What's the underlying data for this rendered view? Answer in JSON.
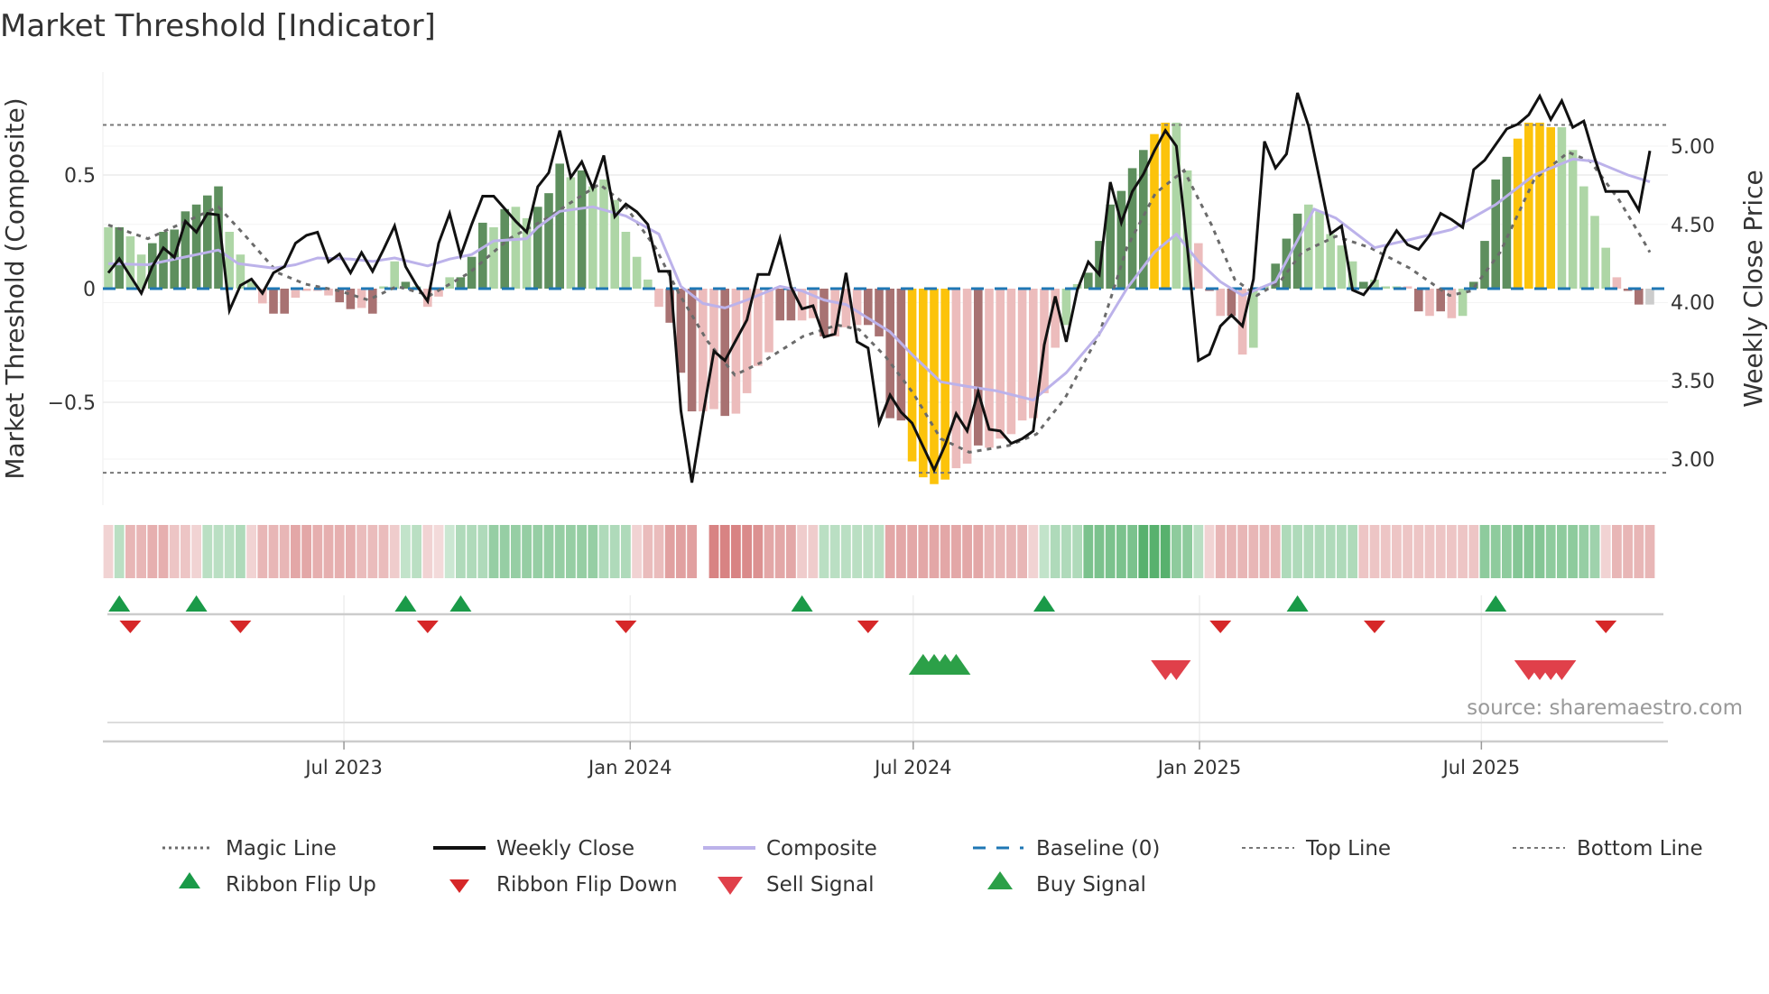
{
  "chart_data": {
    "type": "bar",
    "title": "Market Threshold [Indicator]",
    "ylabel": "Market Threshold (Composite)",
    "y2label": "Weekly Close Price",
    "source": "source: sharemaestro.com",
    "ylim": [
      -0.93,
      0.95
    ],
    "y2lim": [
      2.75,
      5.45
    ],
    "y_ticks": [
      "0.5",
      "0",
      "−0.5"
    ],
    "y_tick_values": [
      0.5,
      0,
      -0.5
    ],
    "y2_ticks": [
      "5.00",
      "4.50",
      "4.00",
      "3.50",
      "3.00"
    ],
    "y2_tick_values": [
      5.0,
      4.5,
      4.0,
      3.5,
      3.0
    ],
    "x_ticks": [
      {
        "label": "Jul 2023",
        "week": 21.4
      },
      {
        "label": "Jan 2024",
        "week": 47.4
      },
      {
        "label": "Jul 2024",
        "week": 73.1
      },
      {
        "label": "Jan 2025",
        "week": 99.1
      },
      {
        "label": "Jul 2025",
        "week": 124.7
      }
    ],
    "weeks": 141,
    "top_line": 0.72,
    "bottom_line": -0.81,
    "composite_bars": [
      0.27,
      0.27,
      0.23,
      0.15,
      0.2,
      0.25,
      0.26,
      0.34,
      0.37,
      0.41,
      0.45,
      0.25,
      0.15,
      0.03,
      -0.065,
      -0.11,
      -0.11,
      -0.04,
      -0.01,
      -0.01,
      -0.03,
      -0.06,
      -0.09,
      -0.085,
      -0.11,
      0.01,
      0.12,
      0.03,
      0.01,
      -0.08,
      -0.035,
      0.05,
      0.05,
      0.14,
      0.29,
      0.27,
      0.35,
      0.36,
      0.31,
      0.36,
      0.42,
      0.55,
      0.49,
      0.52,
      0.45,
      0.48,
      0.39,
      0.25,
      0.14,
      0.04,
      -0.08,
      -0.15,
      -0.37,
      -0.54,
      -0.54,
      -0.53,
      -0.56,
      -0.55,
      -0.46,
      -0.34,
      -0.28,
      -0.14,
      -0.14,
      -0.14,
      -0.13,
      -0.21,
      -0.21,
      -0.17,
      -0.16,
      -0.16,
      -0.21,
      -0.57,
      -0.58,
      -0.76,
      -0.83,
      -0.86,
      -0.84,
      -0.79,
      -0.77,
      -0.69,
      -0.7,
      -0.66,
      -0.64,
      -0.58,
      -0.57,
      -0.46,
      -0.26,
      -0.16,
      0.02,
      0.07,
      0.21,
      0.37,
      0.43,
      0.53,
      0.61,
      0.68,
      0.73,
      0.73,
      0.52,
      0.2,
      -0.01,
      -0.12,
      -0.12,
      -0.29,
      -0.26,
      0.01,
      0.11,
      0.22,
      0.33,
      0.37,
      0.34,
      0.24,
      0.19,
      0.12,
      0.03,
      0.04,
      0.01,
      0.01,
      0.01,
      -0.1,
      -0.12,
      -0.1,
      -0.13,
      -0.12,
      0.03,
      0.21,
      0.48,
      0.58,
      0.66,
      0.73,
      0.73,
      0.71,
      0.71,
      0.61,
      0.45,
      0.32,
      0.18,
      0.05,
      -0.01,
      -0.07,
      -0.07
    ],
    "bar_styles": "gGggGGGGGGGgggrRRrrrrRRrRggGgrrgGGGgGggGGGgGggggggrRRRrrRrrrrRRrrRrrrRRRRYYYYrrRrrrrrrrggGGGGGGYYggrRrRrggGGGgggggGgggrRrRrgGGGGYYYYgggggrRR",
    "bar_colors": {
      "G": "#5e8f5e",
      "g": "#aed6a6",
      "R": "#a87272",
      "r": "#ecbcbc",
      "Y": "#fcc30b"
    },
    "weekly_close": [
      4.19,
      4.28,
      4.17,
      4.06,
      4.23,
      4.35,
      4.29,
      4.52,
      4.45,
      4.57,
      4.56,
      3.95,
      4.11,
      4.15,
      4.06,
      4.19,
      4.23,
      4.38,
      4.43,
      4.45,
      4.26,
      4.31,
      4.19,
      4.32,
      4.2,
      4.34,
      4.49,
      4.23,
      4.11,
      4.01,
      4.38,
      4.57,
      4.3,
      4.5,
      4.68,
      4.68,
      4.6,
      4.52,
      4.45,
      4.74,
      4.83,
      5.1,
      4.8,
      4.9,
      4.73,
      4.94,
      4.55,
      4.63,
      4.58,
      4.5,
      4.2,
      4.2,
      3.31,
      2.85,
      3.28,
      3.69,
      3.63,
      3.76,
      3.89,
      4.18,
      4.18,
      4.41,
      4.1,
      3.96,
      3.98,
      3.78,
      3.8,
      4.19,
      3.75,
      3.71,
      3.23,
      3.41,
      3.3,
      3.23,
      3.08,
      2.93,
      3.09,
      3.29,
      3.18,
      3.43,
      3.19,
      3.18,
      3.1,
      3.13,
      3.18,
      3.73,
      4.04,
      3.75,
      4.08,
      4.26,
      4.18,
      4.77,
      4.51,
      4.71,
      4.82,
      4.97,
      5.1,
      5.0,
      4.35,
      3.63,
      3.67,
      3.85,
      3.92,
      3.85,
      4.15,
      5.03,
      4.86,
      4.95,
      5.34,
      5.13,
      4.79,
      4.44,
      4.49,
      4.08,
      4.05,
      4.14,
      4.35,
      4.46,
      4.37,
      4.34,
      4.43,
      4.57,
      4.53,
      4.48,
      4.85,
      4.91,
      5.01,
      5.11,
      5.14,
      5.2,
      5.32,
      5.17,
      5.29,
      5.12,
      5.16,
      4.92,
      4.71,
      4.71,
      4.71,
      4.59,
      4.97
    ],
    "composite_line": [
      [
        0,
        0.11
      ],
      [
        3.6,
        0.105
      ],
      [
        10,
        0.17
      ],
      [
        11.8,
        0.11
      ],
      [
        15,
        0.09
      ],
      [
        17,
        0.105
      ],
      [
        19,
        0.135
      ],
      [
        22,
        0.13
      ],
      [
        24,
        0.12
      ],
      [
        26,
        0.135
      ],
      [
        29,
        0.1
      ],
      [
        31,
        0.13
      ],
      [
        33,
        0.15
      ],
      [
        35,
        0.21
      ],
      [
        38,
        0.22
      ],
      [
        39,
        0.27
      ],
      [
        41,
        0.34
      ],
      [
        44,
        0.36
      ],
      [
        47,
        0.32
      ],
      [
        50,
        0.24
      ],
      [
        52,
        0.01
      ],
      [
        54,
        -0.065
      ],
      [
        56,
        -0.085
      ],
      [
        58,
        -0.05
      ],
      [
        61,
        0.01
      ],
      [
        63,
        -0.01
      ],
      [
        65,
        -0.05
      ],
      [
        67,
        -0.07
      ],
      [
        71,
        -0.19
      ],
      [
        73,
        -0.29
      ],
      [
        75.6,
        -0.41
      ],
      [
        78,
        -0.43
      ],
      [
        80.7,
        -0.45
      ],
      [
        84,
        -0.49
      ],
      [
        87,
        -0.37
      ],
      [
        90,
        -0.2
      ],
      [
        92.5,
        0.0
      ],
      [
        95,
        0.16
      ],
      [
        97,
        0.24
      ],
      [
        99,
        0.12
      ],
      [
        101,
        0.03
      ],
      [
        103,
        -0.03
      ],
      [
        106,
        0.03
      ],
      [
        109.5,
        0.35
      ],
      [
        111.5,
        0.31
      ],
      [
        115,
        0.18
      ],
      [
        117.7,
        0.21
      ],
      [
        122,
        0.26
      ],
      [
        126,
        0.37
      ],
      [
        129.5,
        0.5
      ],
      [
        133,
        0.57
      ],
      [
        135,
        0.56
      ],
      [
        138,
        0.5
      ],
      [
        140,
        0.47
      ]
    ],
    "magic_line": [
      [
        0,
        0.28
      ],
      [
        3.6,
        0.22
      ],
      [
        10,
        0.36
      ],
      [
        12.3,
        0.24
      ],
      [
        15.4,
        0.07
      ],
      [
        17.9,
        0.02
      ],
      [
        21,
        -0.01
      ],
      [
        23.6,
        -0.05
      ],
      [
        26.2,
        0.01
      ],
      [
        29.2,
        -0.03
      ],
      [
        32.8,
        0.07
      ],
      [
        36.4,
        0.22
      ],
      [
        39.5,
        0.3
      ],
      [
        44.6,
        0.46
      ],
      [
        46.7,
        0.38
      ],
      [
        49.7,
        0.18
      ],
      [
        51.8,
        -0.02
      ],
      [
        54.4,
        -0.23
      ],
      [
        56.9,
        -0.38
      ],
      [
        59.5,
        -0.32
      ],
      [
        63.1,
        -0.21
      ],
      [
        66.2,
        -0.16
      ],
      [
        68.2,
        -0.18
      ],
      [
        70.6,
        -0.3
      ],
      [
        73.1,
        -0.46
      ],
      [
        75.6,
        -0.66
      ],
      [
        78.2,
        -0.72
      ],
      [
        81.8,
        -0.69
      ],
      [
        84.3,
        -0.64
      ],
      [
        86.9,
        -0.48
      ],
      [
        90,
        -0.2
      ],
      [
        92.5,
        0.18
      ],
      [
        95.1,
        0.42
      ],
      [
        97.7,
        0.52
      ],
      [
        100.2,
        0.28
      ],
      [
        102.3,
        0.04
      ],
      [
        104.3,
        -0.03
      ],
      [
        106.4,
        0.03
      ],
      [
        108.4,
        0.16
      ],
      [
        111.5,
        0.23
      ],
      [
        114.6,
        0.18
      ],
      [
        118.2,
        0.09
      ],
      [
        121.8,
        -0.03
      ],
      [
        123.8,
        -0.01
      ],
      [
        126.4,
        0.16
      ],
      [
        129.5,
        0.48
      ],
      [
        132.6,
        0.6
      ],
      [
        134.6,
        0.56
      ],
      [
        137.2,
        0.39
      ],
      [
        139.3,
        0.22
      ],
      [
        140,
        0.16
      ]
    ],
    "ribbon": [
      -0.15,
      0.25,
      -0.35,
      -0.35,
      -0.4,
      -0.4,
      -0.25,
      -0.25,
      -0.15,
      0.25,
      0.25,
      0.25,
      0.3,
      -0.15,
      -0.35,
      -0.35,
      -0.35,
      -0.45,
      -0.45,
      -0.4,
      -0.4,
      -0.4,
      -0.4,
      -0.3,
      -0.3,
      -0.3,
      -0.2,
      0.2,
      0.25,
      -0.15,
      -0.1,
      0.15,
      0.3,
      0.3,
      0.3,
      0.45,
      0.45,
      0.45,
      0.45,
      0.45,
      0.45,
      0.45,
      0.45,
      0.45,
      0.45,
      0.3,
      0.3,
      0.3,
      -0.15,
      -0.3,
      -0.3,
      -0.5,
      -0.5,
      -0.5,
      null,
      -0.7,
      -0.7,
      -0.7,
      -0.65,
      -0.6,
      -0.45,
      -0.45,
      -0.45,
      -0.2,
      -0.2,
      0.25,
      0.25,
      0.25,
      0.25,
      0.25,
      0.25,
      -0.45,
      -0.45,
      -0.45,
      -0.45,
      -0.45,
      -0.45,
      -0.45,
      -0.45,
      -0.45,
      -0.35,
      -0.35,
      -0.35,
      -0.35,
      -0.15,
      0.2,
      0.3,
      0.3,
      0.3,
      0.6,
      0.6,
      0.6,
      0.6,
      0.6,
      0.8,
      0.8,
      0.8,
      0.5,
      0.5,
      0.25,
      -0.15,
      -0.35,
      -0.35,
      -0.35,
      -0.35,
      -0.35,
      -0.35,
      0.3,
      0.3,
      0.3,
      0.3,
      0.3,
      0.3,
      0.3,
      -0.25,
      -0.25,
      -0.25,
      -0.25,
      -0.25,
      -0.25,
      -0.25,
      -0.25,
      -0.25,
      -0.25,
      -0.25,
      0.5,
      0.5,
      0.5,
      0.55,
      0.55,
      0.55,
      0.5,
      0.5,
      0.5,
      0.45,
      0.4,
      -0.15,
      -0.35,
      -0.35,
      -0.35,
      -0.35
    ],
    "ribbon_flip_up": [
      1,
      8,
      27,
      32,
      63,
      85,
      108,
      126
    ],
    "ribbon_flip_down": [
      2,
      12,
      29,
      47,
      69,
      101,
      115,
      136
    ],
    "buy_signals": [
      74,
      75,
      76,
      77
    ],
    "sell_signals": [
      96,
      97,
      129,
      130,
      131,
      132
    ],
    "legend": [
      "Magic Line",
      "Weekly Close",
      "Composite",
      "Baseline (0)",
      "Top Line",
      "Bottom Line",
      "Ribbon Flip Up",
      "Ribbon Flip Down",
      "Sell Signal",
      "Buy Signal"
    ],
    "colors": {
      "weekly_close": "#111111",
      "composite": "#bcb2ea",
      "magic": "#6b6b6b",
      "baseline": "#1f77b4",
      "threshold": "#777777",
      "ribbon_green": "#2e9e4a",
      "ribbon_red": "#c85050",
      "flip_up": "#1a9a48",
      "flip_down": "#d62728",
      "buy": "#2ca048",
      "sell": "#e0404a"
    },
    "legend_location": "bottom"
  }
}
